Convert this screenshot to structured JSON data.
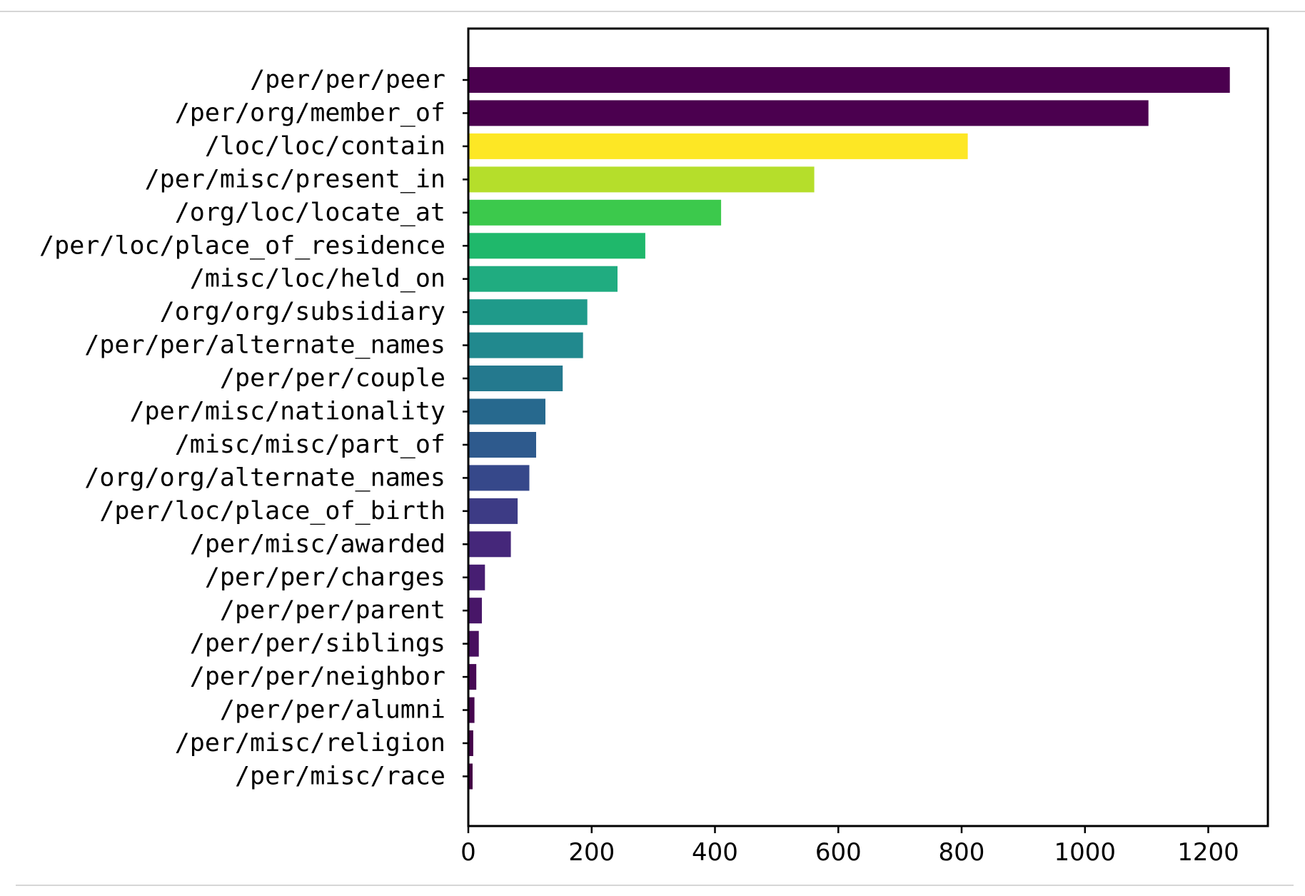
{
  "chart_data": {
    "type": "bar",
    "orientation": "horizontal",
    "title": "",
    "xlabel": "",
    "ylabel": "",
    "categories": [
      "/per/per/peer",
      "/per/org/member_of",
      "/loc/loc/contain",
      "/per/misc/present_in",
      "/org/loc/locate_at",
      "/per/loc/place_of_residence",
      "/misc/loc/held_on",
      "/org/org/subsidiary",
      "/per/per/alternate_names",
      "/per/per/couple",
      "/per/misc/nationality",
      "/misc/misc/part_of",
      "/org/org/alternate_names",
      "/per/loc/place_of_birth",
      "/per/misc/awarded",
      "/per/per/charges",
      "/per/per/parent",
      "/per/per/siblings",
      "/per/per/neighbor",
      "/per/per/alumni",
      "/per/misc/religion",
      "/per/misc/race"
    ],
    "values": [
      1235,
      1103,
      810,
      561,
      410,
      287,
      242,
      193,
      186,
      153,
      125,
      110,
      99,
      80,
      69,
      27,
      22,
      17,
      13,
      10,
      8,
      7
    ],
    "bar_colors": [
      "#4b004f",
      "#4b004f",
      "#fde725",
      "#b5de2b",
      "#3cc94c",
      "#1fb86b",
      "#20ac80",
      "#1f9a8a",
      "#21898e",
      "#24798e",
      "#27698e",
      "#2e5a8d",
      "#36488a",
      "#3d3b85",
      "#45277a",
      "#471e72",
      "#481668",
      "#480f5f",
      "#470955",
      "#46074f",
      "#45054a",
      "#440245"
    ],
    "xlim": [
      0,
      1300
    ],
    "xticks": [
      0,
      200,
      400,
      600,
      800,
      1000,
      1200
    ],
    "xtick_labels": [
      "0",
      "200",
      "400",
      "600",
      "800",
      "1000",
      "1200"
    ],
    "grid": false,
    "legend": "none"
  }
}
